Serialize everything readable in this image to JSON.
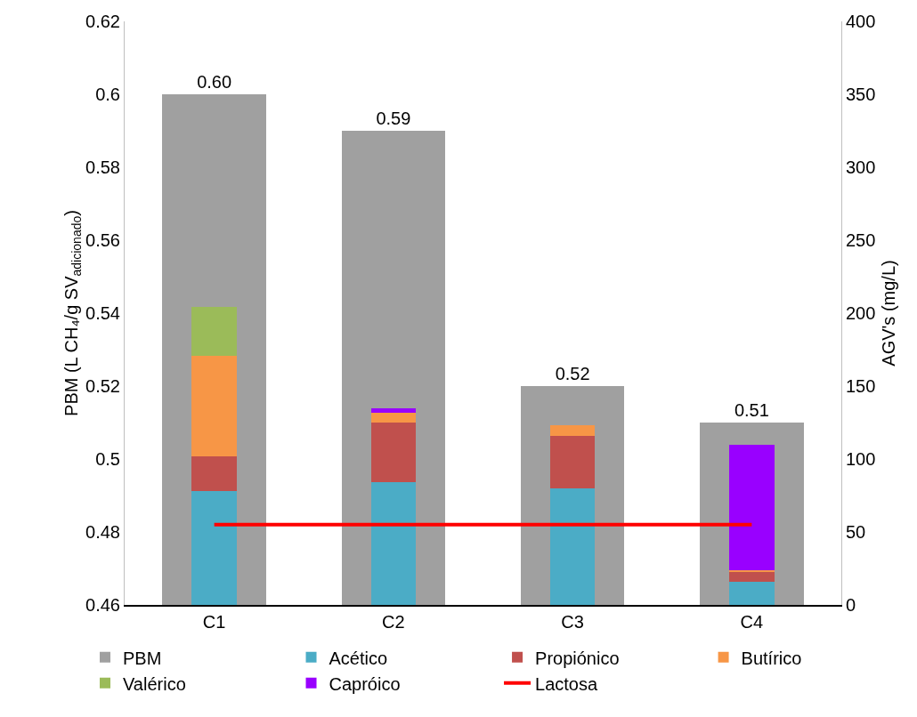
{
  "chart_data": {
    "type": "bar",
    "stacked": true,
    "categories": [
      "C1",
      "C2",
      "C3",
      "C4"
    ],
    "ylabel": "PBM (L CH₄/g SV$_{adicionado}$)",
    "y2label": "AGV's (mg/L)",
    "ylim": [
      0.46,
      0.62
    ],
    "yticks": [
      0.46,
      0.48,
      0.5,
      0.52,
      0.54,
      0.56,
      0.58,
      0.6,
      0.62
    ],
    "y2lim": [
      0,
      400
    ],
    "y2ticks": [
      0,
      50,
      100,
      150,
      200,
      250,
      300,
      350,
      400
    ],
    "grid": false,
    "legend": "bottom",
    "series": [
      {
        "name": "PBM",
        "color": "#a0a0a0",
        "values": [
          0.6,
          0.59,
          0.52,
          0.51
        ],
        "value_labels": [
          "0.60",
          "0.59",
          "0.52",
          "0.51"
        ]
      },
      {
        "name": "Acético",
        "axis": "y2",
        "color": "#4bacc6",
        "values": [
          78,
          84,
          80,
          16
        ]
      },
      {
        "name": "Propiónico",
        "axis": "y2",
        "color": "#c0504d",
        "values": [
          24,
          41,
          36,
          7
        ]
      },
      {
        "name": "Butírico",
        "axis": "y2",
        "color": "#f79646",
        "values": [
          69,
          6.5,
          7,
          1
        ]
      },
      {
        "name": "Valérico",
        "axis": "y2",
        "color": "#9bbb59",
        "values": [
          33,
          null,
          null,
          null
        ]
      },
      {
        "name": "Capróico",
        "axis": "y2",
        "color": "#9900ff",
        "values": [
          null,
          3.3,
          null,
          86
        ]
      },
      {
        "name": "Lactosa",
        "type": "line",
        "axis": "y2",
        "color": "#ff0000",
        "values": [
          55,
          55,
          55,
          55
        ]
      }
    ]
  }
}
